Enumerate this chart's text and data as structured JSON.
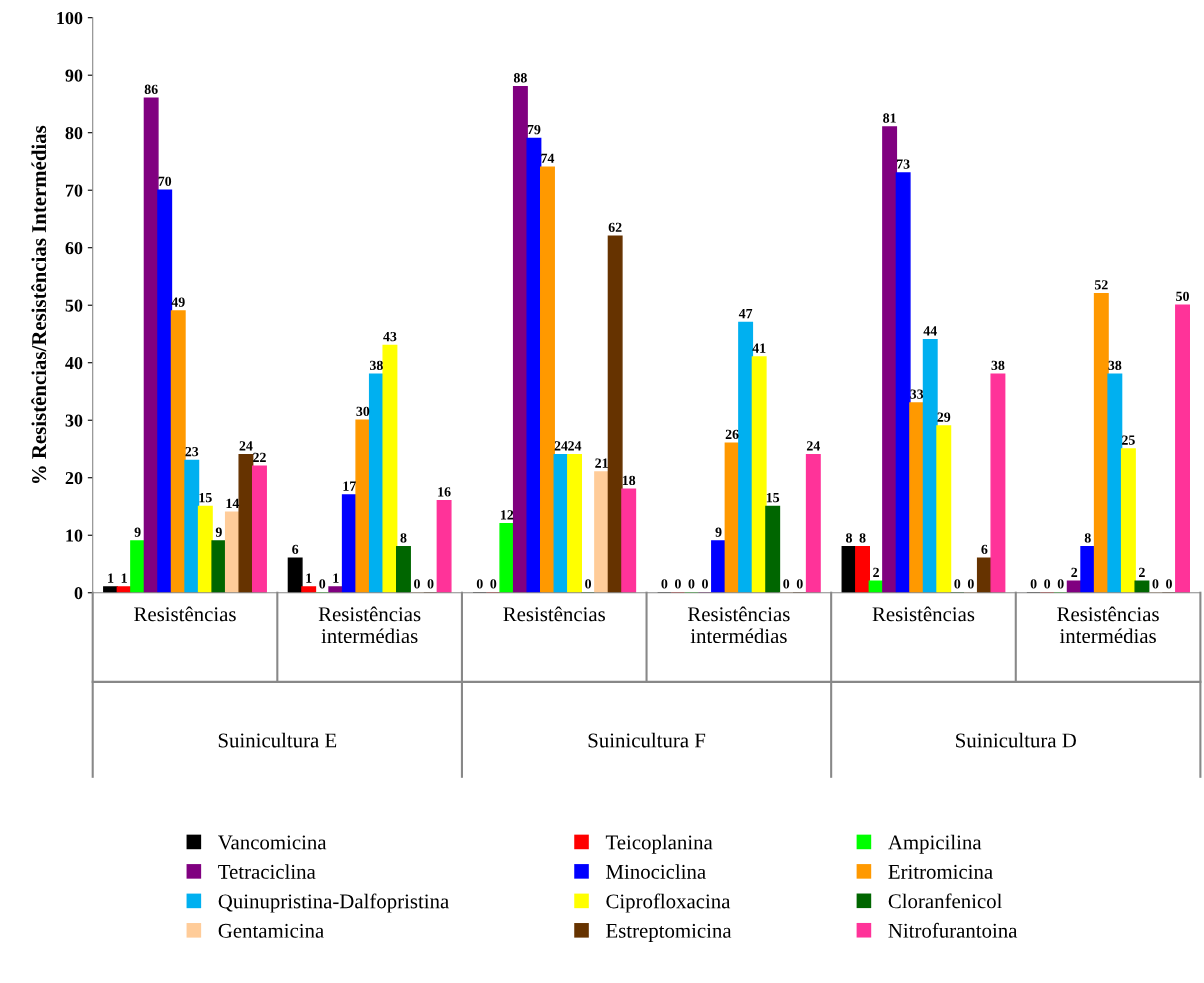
{
  "chart_data": {
    "type": "bar",
    "ylabel": "% Resistências/Resistências Intermédias",
    "categories": [
      "Resistências",
      "Resistências\nintermédias",
      "Resistências",
      "Resistências\nintermédias",
      "Resistências",
      "Resistências\nintermédias"
    ],
    "annotations": [
      "Suinicultura E",
      "Suinicultura F",
      "Suinicultura D"
    ],
    "series": [
      {
        "name": "Vancomicina",
        "color": "#000000",
        "values": [
          1,
          6,
          0,
          0,
          8,
          0
        ]
      },
      {
        "name": "Teicoplanina",
        "color": "#ff0000",
        "values": [
          1,
          1,
          0,
          0,
          8,
          0
        ]
      },
      {
        "name": "Ampicilina",
        "color": "#00ff00",
        "values": [
          9,
          0,
          12,
          0,
          2,
          0
        ]
      },
      {
        "name": "Tetraciclina",
        "color": "#800080",
        "values": [
          86,
          1,
          88,
          0,
          81,
          2
        ]
      },
      {
        "name": "Minociclina",
        "color": "#0000ff",
        "values": [
          70,
          17,
          79,
          9,
          73,
          8
        ]
      },
      {
        "name": "Eritromicina",
        "color": "#ff9900",
        "values": [
          49,
          30,
          74,
          26,
          33,
          52
        ]
      },
      {
        "name": "Quinupristina-Dalfopristina",
        "color": "#00b0f0",
        "values": [
          23,
          38,
          24,
          47,
          44,
          38
        ]
      },
      {
        "name": "Ciprofloxacina",
        "color": "#ffff00",
        "values": [
          15,
          43,
          24,
          41,
          29,
          25
        ]
      },
      {
        "name": "Cloranfenicol",
        "color": "#006600",
        "values": [
          9,
          8,
          0,
          15,
          0,
          2
        ]
      },
      {
        "name": "Gentamicina",
        "color": "#ffcc99",
        "values": [
          14,
          0,
          21,
          0,
          0,
          0
        ]
      },
      {
        "name": "Estreptomicina",
        "color": "#663300",
        "values": [
          24,
          0,
          62,
          0,
          6,
          0
        ]
      },
      {
        "name": "Nitrofurantoina",
        "color": "#ff3399",
        "values": [
          22,
          16,
          18,
          24,
          38,
          50
        ]
      }
    ],
    "ylim": [
      0,
      100
    ],
    "yticks": [
      0,
      10,
      20,
      30,
      40,
      50,
      60,
      70,
      80,
      90,
      100
    ],
    "data_labels": true,
    "grid": false,
    "legend": "bottom"
  }
}
